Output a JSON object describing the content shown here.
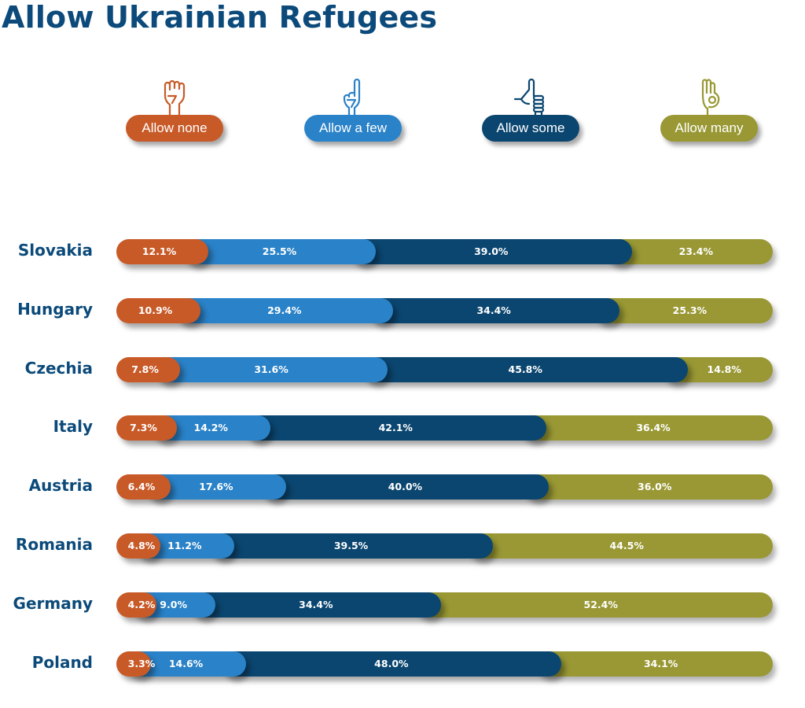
{
  "title": "Allow Ukrainian Refugees",
  "colors": {
    "title": "#0b4a7a",
    "allow_none": "#c85a28",
    "allow_a_few": "#2a82c8",
    "allow_some": "#0b4670",
    "allow_many": "#999834"
  },
  "legend": [
    {
      "label": "Allow none",
      "icon": "fist-icon",
      "color_key": "allow_none"
    },
    {
      "label": "Allow a few",
      "icon": "index-finger-up-icon",
      "color_key": "allow_a_few"
    },
    {
      "label": "Allow some",
      "icon": "thumbs-up-icon",
      "color_key": "allow_some"
    },
    {
      "label": "Allow many",
      "icon": "ok-hand-icon",
      "color_key": "allow_many"
    }
  ],
  "chart_data": {
    "type": "bar",
    "orientation": "horizontal",
    "stacked": true,
    "title": "Allow Ukrainian Refugees",
    "xlabel": "",
    "ylabel": "",
    "xlim": [
      0,
      100
    ],
    "grid": false,
    "legend_position": "top",
    "categories": [
      "Slovakia",
      "Hungary",
      "Czechia",
      "Italy",
      "Austria",
      "Romania",
      "Germany",
      "Poland"
    ],
    "series": [
      {
        "name": "Allow none",
        "values": [
          12.1,
          10.9,
          7.8,
          7.3,
          6.4,
          4.8,
          4.2,
          3.3
        ],
        "labels": [
          "12.1%",
          "10.9%",
          "7.8%",
          "7.3%",
          "6.4%",
          "4.8%",
          "4.2%",
          "3.3%"
        ]
      },
      {
        "name": "Allow a few",
        "values": [
          25.5,
          29.4,
          31.6,
          14.2,
          17.6,
          11.2,
          9.0,
          14.6
        ],
        "labels": [
          "25.5%",
          "29.4%",
          "31.6%",
          "14.2%",
          "17.6%",
          "11.2%",
          "9.0%",
          "14.6%"
        ]
      },
      {
        "name": "Allow some",
        "values": [
          39.0,
          34.4,
          45.8,
          42.1,
          40.0,
          39.5,
          34.4,
          48.0
        ],
        "labels": [
          "39.0%",
          "34.4%",
          "45.8%",
          "42.1%",
          "40.0%",
          "39.5%",
          "34.4%",
          "48.0%"
        ]
      },
      {
        "name": "Allow many",
        "values": [
          23.4,
          25.3,
          14.8,
          36.4,
          36.0,
          44.5,
          52.4,
          34.1
        ],
        "labels": [
          "23.4%",
          "25.3%",
          "14.8%",
          "36.4%",
          "36.0%",
          "44.5%",
          "52.4%",
          "34.1%"
        ]
      }
    ]
  }
}
